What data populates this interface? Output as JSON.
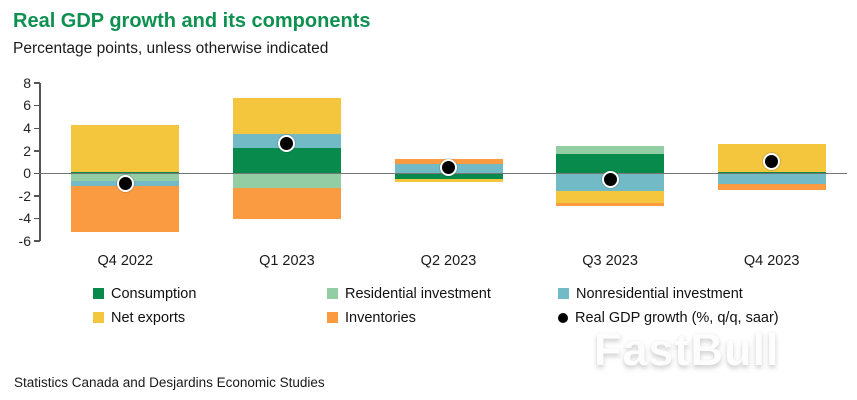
{
  "header": {
    "title": "Real GDP growth and its components",
    "subtitle": "Percentage points, unless otherwise indicated"
  },
  "source": "Statistics Canada and Desjardins Economic Studies",
  "watermark": "FastBull",
  "colors": {
    "title_green": "#0E9150",
    "axis": "#555555",
    "zero_line": "#757575",
    "background": "#ffffff"
  },
  "chart_data": {
    "type": "bar",
    "stacked": true,
    "title": "Real GDP growth and its components",
    "subtitle": "Percentage points, unless otherwise indicated",
    "xlabel": "",
    "ylabel": "Percentage points",
    "categories": [
      "Q4 2022",
      "Q1 2023",
      "Q2 2023",
      "Q3 2023",
      "Q4 2023"
    ],
    "series": [
      {
        "name": "Consumption",
        "color": "#078A4C",
        "values": [
          0.1,
          2.2,
          -0.5,
          1.7,
          0.1
        ]
      },
      {
        "name": "Residential investment",
        "color": "#92CDA4",
        "values": [
          -0.7,
          -1.3,
          0.0,
          0.7,
          0.0
        ]
      },
      {
        "name": "Nonresidential investment",
        "color": "#72BAC6",
        "values": [
          -0.4,
          1.3,
          0.8,
          -1.6,
          -1.0
        ]
      },
      {
        "name": "Net exports",
        "color": "#F4C63E",
        "values": [
          4.2,
          3.2,
          -0.3,
          -1.0,
          2.5
        ]
      },
      {
        "name": "Inventories",
        "color": "#FA9B42",
        "values": [
          -4.1,
          -2.8,
          0.5,
          -0.3,
          -0.5
        ]
      }
    ],
    "dot_series": {
      "name": "Real GDP growth (%, q/q, saar)",
      "color": "#000000",
      "values": [
        -0.9,
        2.6,
        0.5,
        -0.6,
        1.0
      ]
    },
    "ylim": [
      -6,
      8
    ],
    "yticks": [
      8,
      6,
      4,
      2,
      0,
      -2,
      -4,
      -6
    ],
    "grid": false,
    "legend_position": "bottom"
  }
}
